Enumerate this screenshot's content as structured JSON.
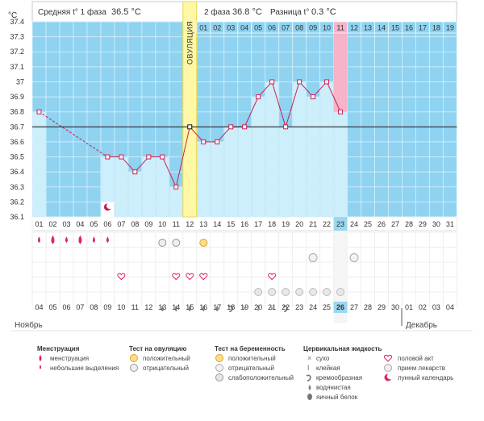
{
  "header": {
    "phase1_label": "Средняя t° 1 фаза",
    "phase1_value": "36.5 °C",
    "phase2_label": "2 фаза",
    "phase2_value": "36.8 °C",
    "diff_label": "Разница t°",
    "diff_value": "0.3 °C",
    "ovulation_label": "ОВУЛЯЦИЯ"
  },
  "colors": {
    "phase_bg": "#8fd3f1",
    "bar_fill": "#cdeefb",
    "line": "#cc1e52",
    "ovulation": "#fff6a6",
    "highlight": "#f7b3c8",
    "today": "#9ad8f2",
    "red_date": "#d7003c"
  },
  "chart_data": {
    "type": "line",
    "title": "",
    "ylabel": "°C",
    "ylim": [
      36.1,
      37.4
    ],
    "yticks": [
      "36.1",
      "36.2",
      "36.3",
      "36.4",
      "36.5",
      "36.6",
      "36.7",
      "36.8",
      "36.9",
      "37",
      "37.1",
      "37.2",
      "37.3",
      "37.4"
    ],
    "cycle_days": [
      "01",
      "02",
      "03",
      "04",
      "05",
      "06",
      "07",
      "08",
      "09",
      "10",
      "11",
      "12",
      "13",
      "14",
      "15",
      "16",
      "17",
      "18",
      "19",
      "20",
      "21",
      "22",
      "23",
      "24",
      "25",
      "26",
      "27",
      "28",
      "29",
      "30",
      "31"
    ],
    "post_ovulation_days": [
      "01",
      "02",
      "03",
      "04",
      "05",
      "06",
      "07",
      "08",
      "09",
      "10",
      "11",
      "12",
      "13",
      "14",
      "15",
      "16",
      "17",
      "18",
      "19"
    ],
    "ovulation_day": 12,
    "highlight_day": 23,
    "series": [
      {
        "values": [
          36.8,
          null,
          null,
          null,
          null,
          36.5,
          36.5,
          36.4,
          36.5,
          36.5,
          36.3,
          36.7,
          36.6,
          36.6,
          36.7,
          36.7,
          36.9,
          37.0,
          36.7,
          37.0,
          36.9,
          37.0,
          36.8,
          null,
          null,
          null,
          null,
          null,
          null,
          null,
          null
        ]
      }
    ],
    "calendar_dates": [
      "04",
      "05",
      "06",
      "07",
      "08",
      "09",
      "10",
      "11",
      "12",
      "13",
      "14",
      "15",
      "16",
      "17",
      "18",
      "19",
      "20",
      "21",
      "22",
      "23",
      "24",
      "25",
      "26",
      "27",
      "28",
      "29",
      "30",
      "01",
      "02",
      "03",
      "04"
    ],
    "red_date_indices": [
      0,
      7,
      8,
      13,
      14,
      19,
      20,
      21,
      22,
      28,
      29
    ],
    "today_index": 22,
    "months": [
      "Ноябрь",
      "Декабрь"
    ],
    "symbol_rows": {
      "menstruation": [
        1,
        2,
        1,
        2,
        1,
        1,
        0,
        0,
        0,
        0,
        0,
        0,
        0,
        0,
        0,
        0,
        0,
        0,
        0,
        0,
        0,
        0,
        0,
        0,
        0,
        0,
        0,
        0,
        0,
        0,
        0
      ],
      "ovulation_test": [
        0,
        0,
        0,
        0,
        0,
        0,
        0,
        0,
        0,
        2,
        2,
        0,
        1,
        0,
        0,
        0,
        0,
        0,
        0,
        0,
        0,
        0,
        0,
        0,
        0,
        0,
        0,
        0,
        0,
        0,
        0
      ],
      "pregnancy_test": [
        0,
        0,
        0,
        0,
        0,
        0,
        0,
        0,
        0,
        0,
        0,
        0,
        0,
        0,
        0,
        0,
        0,
        0,
        0,
        0,
        2,
        0,
        0,
        2,
        0,
        0,
        0,
        0,
        0,
        0,
        0
      ],
      "intercourse": [
        0,
        0,
        0,
        0,
        0,
        0,
        1,
        0,
        0,
        0,
        1,
        1,
        1,
        0,
        0,
        0,
        0,
        1,
        0,
        0,
        0,
        0,
        0,
        0,
        0,
        0,
        0,
        0,
        0,
        0,
        0
      ],
      "medicine": [
        0,
        0,
        0,
        0,
        0,
        0,
        0,
        0,
        0,
        0,
        0,
        0,
        0,
        0,
        0,
        0,
        1,
        1,
        1,
        1,
        1,
        1,
        1,
        0,
        0,
        0,
        0,
        0,
        0,
        0,
        0
      ],
      "cervical": [
        "",
        "",
        "",
        "",
        "",
        "",
        "",
        "",
        "",
        "w",
        "w",
        "w",
        "w",
        "w",
        "c",
        "x",
        "s",
        "x",
        "c",
        "",
        "",
        "",
        "",
        "",
        "",
        "",
        "",
        "",
        "",
        "",
        ""
      ]
    },
    "fertile_marker_day": 6
  },
  "legend": {
    "menstruation": {
      "title": "Менструация",
      "items": [
        "менструация",
        "небольшие выделения"
      ]
    },
    "ovulation_test": {
      "title": "Тест на овуляцию",
      "items": [
        "положительный",
        "отрицательный"
      ]
    },
    "pregnancy_test": {
      "title": "Тест на беременность",
      "items": [
        "положительный",
        "отрицательный",
        "слабоположительный"
      ]
    },
    "cervical": {
      "title": "Цервикальная жидкость",
      "items": [
        "сухо",
        "клейкая",
        "кремообразная",
        "водянистая",
        "яичный белок"
      ]
    },
    "other": {
      "items": [
        "половой акт",
        "прием лекарств",
        "лунный календарь"
      ]
    }
  }
}
